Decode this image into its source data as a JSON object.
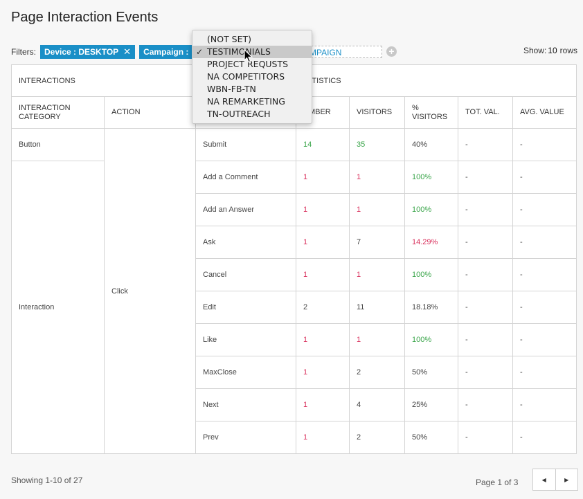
{
  "page": {
    "title": "Page Interaction Events"
  },
  "filters": {
    "label": "Filters:",
    "chips": [
      {
        "name": "Device",
        "value": "DESKTOP",
        "text": "Device : DESKTOP"
      },
      {
        "name": "Campaign",
        "text": "Campaign :"
      }
    ],
    "campaign_input_text": "AMPAIGN",
    "show_label": "Show:",
    "show_value": "10",
    "rows_label": "rows"
  },
  "dropdown": {
    "options": [
      "(NOT SET)",
      "TESTIMONIALS",
      "PROJECT REQUSTS",
      "NA COMPETITORS",
      "WBN-FB-TN",
      "NA REMARKETING",
      "TN-OUTREACH"
    ],
    "selected": "TESTIMONIALS"
  },
  "table": {
    "group_headers": {
      "interactions": "INTERACTIONS",
      "statistics": "TATISTICS"
    },
    "columns": {
      "category": "INTERACTION CATEGORY",
      "action": "ACTION",
      "number": "UMBER",
      "visitors": "VISITORS",
      "pct_visitors": "% VISITORS",
      "tot_val": "TOT. VAL.",
      "avg_value": "AVG. VALUE"
    },
    "categories": [
      "Button",
      "Interaction"
    ],
    "action": "Click",
    "rows": [
      {
        "label": "Submit",
        "number": "14",
        "visitors": "35",
        "pct": "40%",
        "tot": "-",
        "avg": "-"
      },
      {
        "label": "Add a Comment",
        "number": "1",
        "visitors": "1",
        "pct": "100%",
        "tot": "-",
        "avg": "-"
      },
      {
        "label": "Add an Answer",
        "number": "1",
        "visitors": "1",
        "pct": "100%",
        "tot": "-",
        "avg": "-"
      },
      {
        "label": "Ask",
        "number": "1",
        "visitors": "7",
        "pct": "14.29%",
        "tot": "-",
        "avg": "-"
      },
      {
        "label": "Cancel",
        "number": "1",
        "visitors": "1",
        "pct": "100%",
        "tot": "-",
        "avg": "-"
      },
      {
        "label": "Edit",
        "number": "2",
        "visitors": "11",
        "pct": "18.18%",
        "tot": "-",
        "avg": "-"
      },
      {
        "label": "Like",
        "number": "1",
        "visitors": "1",
        "pct": "100%",
        "tot": "-",
        "avg": "-"
      },
      {
        "label": "MaxClose",
        "number": "1",
        "visitors": "2",
        "pct": "50%",
        "tot": "-",
        "avg": "-"
      },
      {
        "label": "Next",
        "number": "1",
        "visitors": "4",
        "pct": "25%",
        "tot": "-",
        "avg": "-"
      },
      {
        "label": "Prev",
        "number": "1",
        "visitors": "2",
        "pct": "50%",
        "tot": "-",
        "avg": "-"
      }
    ]
  },
  "footer": {
    "showing": "Showing 1-10 of 27",
    "page_text": "Page 1 of 3"
  },
  "icons": {
    "prev": "caret-left-icon",
    "next": "caret-right-icon",
    "add": "plus-circle-icon",
    "close": "close-icon",
    "cursor": "mouse-pointer-icon"
  },
  "colors": {
    "accent": "#1a8fc7",
    "negative": "#d9305c",
    "positive": "#3aa54a"
  }
}
